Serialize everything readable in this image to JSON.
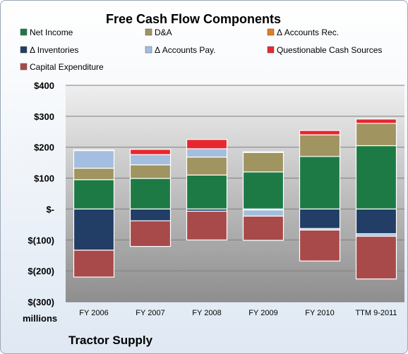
{
  "chart_data": {
    "type": "bar",
    "stacked": true,
    "title": "Free Cash Flow Components",
    "categories": [
      "FY 2006",
      "FY 2007",
      "FY 2008",
      "FY 2009",
      "FY 2010",
      "TTM 9-2011"
    ],
    "series": [
      {
        "name": "Net Income",
        "color": "#1e7a45",
        "values": [
          95,
          99,
          110,
          120,
          170,
          205
        ]
      },
      {
        "name": "D&A",
        "color": "#a09460",
        "values": [
          37,
          44,
          58,
          63,
          70,
          72
        ]
      },
      {
        "name": "Δ Accounts Rec.",
        "color": "#e87a1e",
        "values": [
          0,
          0,
          0,
          0,
          0,
          0
        ]
      },
      {
        "name": "Δ Inventories",
        "color": "#223d66",
        "values": [
          -133,
          -38,
          -7,
          -3,
          -63,
          -80
        ]
      },
      {
        "name": "Δ Accounts Pay.",
        "color": "#a3bede",
        "values": [
          57,
          33,
          27,
          -20,
          -5,
          -8
        ]
      },
      {
        "name": "Questionable Cash Sources",
        "color": "#e8262e",
        "values": [
          3,
          17,
          30,
          2,
          14,
          14
        ]
      },
      {
        "name": "Capital Expenditure",
        "color": "#a84a4a",
        "values": [
          -87,
          -83,
          -93,
          -78,
          -100,
          -138
        ]
      }
    ],
    "ylim": [
      -300,
      400
    ],
    "yticks": [
      400,
      300,
      200,
      100,
      0,
      -100,
      -200,
      -300
    ],
    "ytick_labels": [
      "$400",
      "$300",
      "$200",
      "$100",
      "$-",
      "$(100)",
      "$(200)",
      "$(300)"
    ],
    "grid": true,
    "legend_position": "top",
    "unit_label": "millions",
    "footer": "Tractor Supply"
  }
}
